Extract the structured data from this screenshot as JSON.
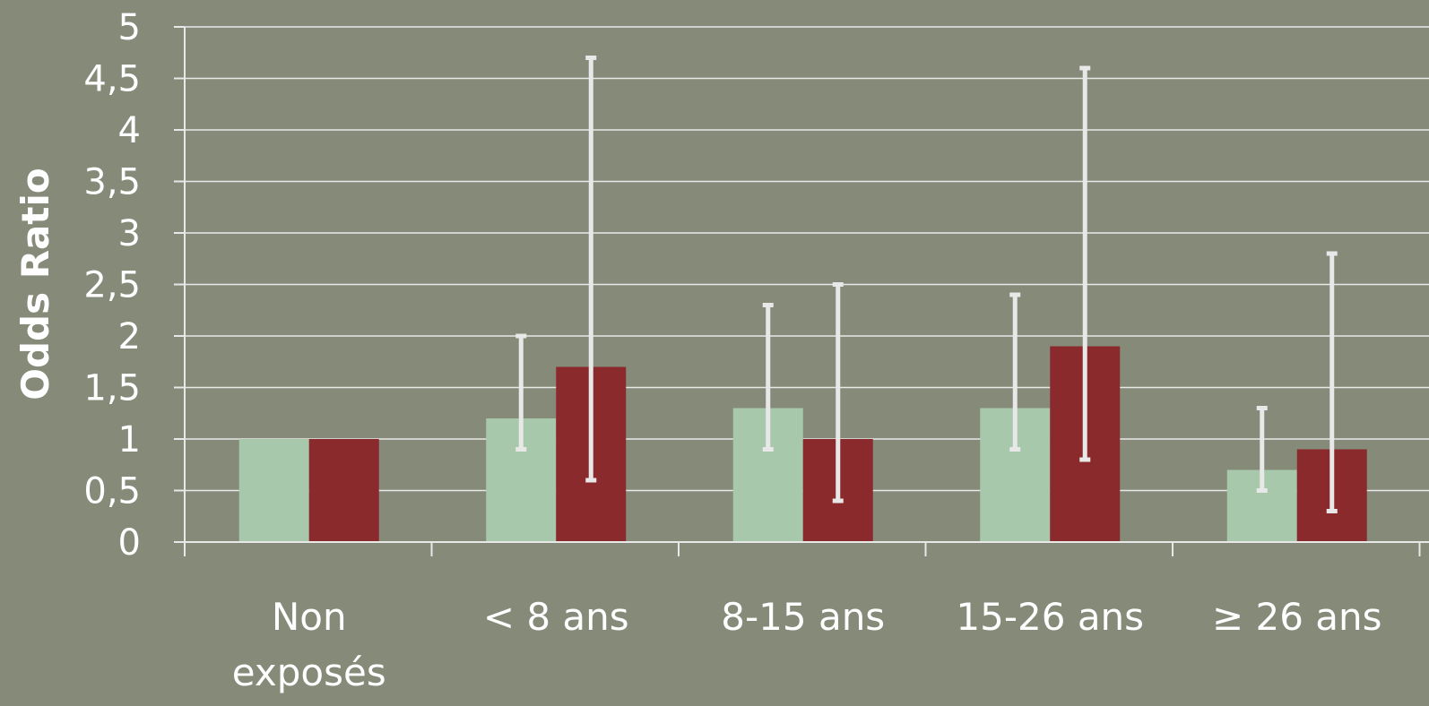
{
  "chart_data": {
    "type": "bar",
    "ylabel": "Odds Ratio",
    "xlabel": "",
    "ylim": [
      0,
      5
    ],
    "y_ticks": [
      "0",
      "0,5",
      "1",
      "1,5",
      "2",
      "2,5",
      "3",
      "3,5",
      "4",
      "4,5",
      "5"
    ],
    "grid": true,
    "categories": [
      [
        "Non",
        "exposés"
      ],
      [
        "< 8 ans"
      ],
      [
        "8-15 ans"
      ],
      [
        "15-26 ans"
      ],
      [
        "≥ 26 ans"
      ]
    ],
    "series": [
      {
        "color": "#a8c8ac",
        "values": [
          1,
          1.2,
          1.3,
          1.3,
          0.7
        ],
        "error_bars": [
          null,
          [
            0.9,
            2.0
          ],
          [
            0.9,
            2.3
          ],
          [
            0.9,
            2.4
          ],
          [
            0.5,
            1.3
          ]
        ]
      },
      {
        "color": "#8b2a2d",
        "values": [
          1,
          1.7,
          1,
          1.9,
          0.9
        ],
        "error_bars": [
          null,
          [
            0.6,
            4.7
          ],
          [
            0.4,
            2.5
          ],
          [
            0.8,
            4.6
          ],
          [
            0.3,
            2.8
          ]
        ]
      }
    ],
    "colors": {
      "background": "#868a79",
      "grid": "#e8e8e8",
      "error_bar": "#e8e8e8",
      "text": "#ffffff"
    }
  }
}
